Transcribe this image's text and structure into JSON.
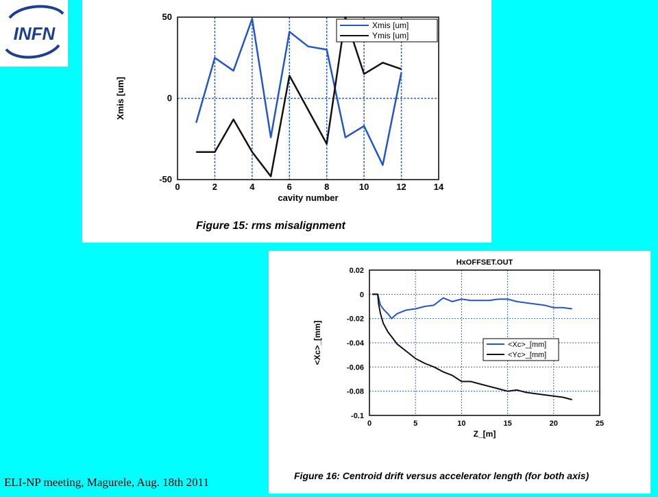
{
  "logo": {
    "text": "INFN"
  },
  "footer": {
    "text": "ELI-NP meeting, Magurele, Aug. 18th 2011"
  },
  "colors": {
    "background": "#00ffff",
    "series_blue": "#2255cc",
    "series_black": "#111111",
    "grid": "#2b5fd9"
  },
  "chart_data": [
    {
      "type": "line",
      "title": "",
      "caption": "Figure 15: rms misalignment",
      "xlabel": "cavity number",
      "ylabel": "Xmis [um]",
      "xlim": [
        0,
        14
      ],
      "ylim": [
        -50,
        50
      ],
      "xticks": [
        0,
        2,
        4,
        6,
        8,
        10,
        12,
        14
      ],
      "yticks": [
        -50,
        0,
        50
      ],
      "grid": true,
      "legend": "top-right",
      "series": [
        {
          "name": "Xmis [um]",
          "color": "#2255cc",
          "x": [
            1,
            2,
            3,
            4,
            5,
            6,
            7,
            8,
            9,
            10,
            11,
            12
          ],
          "y": [
            -15,
            25,
            17,
            49,
            -24,
            41,
            32,
            30,
            -24,
            -17,
            -41,
            16
          ]
        },
        {
          "name": "Ymis [um]",
          "color": "#111111",
          "x": [
            1,
            2,
            3,
            4,
            5,
            6,
            7,
            8,
            9,
            10,
            11,
            12
          ],
          "y": [
            -33,
            -33,
            -13,
            -33,
            -48,
            14,
            -7,
            -28,
            50,
            15,
            22,
            18
          ]
        }
      ]
    },
    {
      "type": "line",
      "title": "HxOFFSET.OUT",
      "caption": "Figure 16: Centroid drift versus accelerator length (for both axis)",
      "xlabel": "Z_[m]",
      "ylabel": "<Xc>_[mm]",
      "xlim": [
        0,
        25
      ],
      "ylim": [
        -0.1,
        0.02
      ],
      "xticks": [
        0,
        5,
        10,
        15,
        20,
        25
      ],
      "yticks": [
        -0.1,
        -0.08,
        -0.06,
        -0.04,
        -0.02,
        0,
        0.02
      ],
      "grid": true,
      "legend": "center-right",
      "series": [
        {
          "name": "<Xc>_[mm]",
          "color": "#2255cc",
          "x": [
            0.3,
            0.9,
            1.2,
            1.6,
            2.0,
            2.4,
            3.0,
            4.0,
            5.0,
            6.0,
            7.0,
            8.0,
            9.0,
            10.0,
            11.0,
            12.0,
            13.0,
            14.0,
            15.0,
            16.0,
            17.0,
            18.0,
            19.0,
            20.0,
            21.0,
            22.0
          ],
          "y": [
            0,
            0,
            -0.009,
            -0.013,
            -0.016,
            -0.02,
            -0.016,
            -0.013,
            -0.012,
            -0.01,
            -0.009,
            -0.003,
            -0.006,
            -0.004,
            -0.005,
            -0.005,
            -0.005,
            -0.004,
            -0.004,
            -0.006,
            -0.007,
            -0.008,
            -0.009,
            -0.011,
            -0.011,
            -0.012
          ]
        },
        {
          "name": "<Yc>_[mm]",
          "color": "#111111",
          "x": [
            0.3,
            0.9,
            1.0,
            1.2,
            1.5,
            2.0,
            2.5,
            3.0,
            4.0,
            5.0,
            6.0,
            7.0,
            8.0,
            9.0,
            10.0,
            11.0,
            12.0,
            13.0,
            14.0,
            15.0,
            16.0,
            17.0,
            18.0,
            19.0,
            20.0,
            21.0,
            22.0
          ],
          "y": [
            0,
            0,
            -0.008,
            -0.016,
            -0.024,
            -0.031,
            -0.036,
            -0.041,
            -0.047,
            -0.053,
            -0.057,
            -0.06,
            -0.064,
            -0.067,
            -0.072,
            -0.072,
            -0.074,
            -0.076,
            -0.078,
            -0.08,
            -0.079,
            -0.081,
            -0.082,
            -0.083,
            -0.084,
            -0.085,
            -0.087
          ]
        }
      ]
    }
  ]
}
